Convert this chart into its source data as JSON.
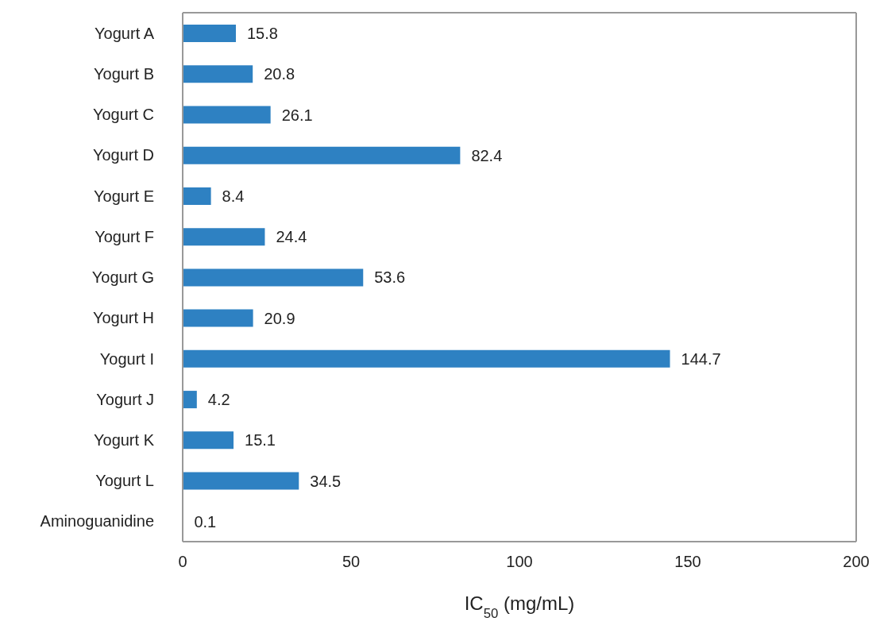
{
  "chart_data": {
    "type": "bar",
    "orientation": "horizontal",
    "xlabel": "IC$_{50}$ (mg/mL)",
    "categories": [
      "Yogurt A",
      "Yogurt B",
      "Yogurt C",
      "Yogurt D",
      "Yogurt E",
      "Yogurt F",
      "Yogurt G",
      "Yogurt H",
      "Yogurt I",
      "Yogurt J",
      "Yogurt K",
      "Yogurt L",
      "Aminoguanidine"
    ],
    "values": [
      15.8,
      20.8,
      26.1,
      82.4,
      8.4,
      24.4,
      53.6,
      20.9,
      144.7,
      4.2,
      15.1,
      34.5,
      0.1
    ],
    "color": "#2e81c2",
    "xlim": [
      0,
      200
    ],
    "xticks": [
      0,
      50,
      100,
      150,
      200
    ],
    "data_labels": true
  }
}
